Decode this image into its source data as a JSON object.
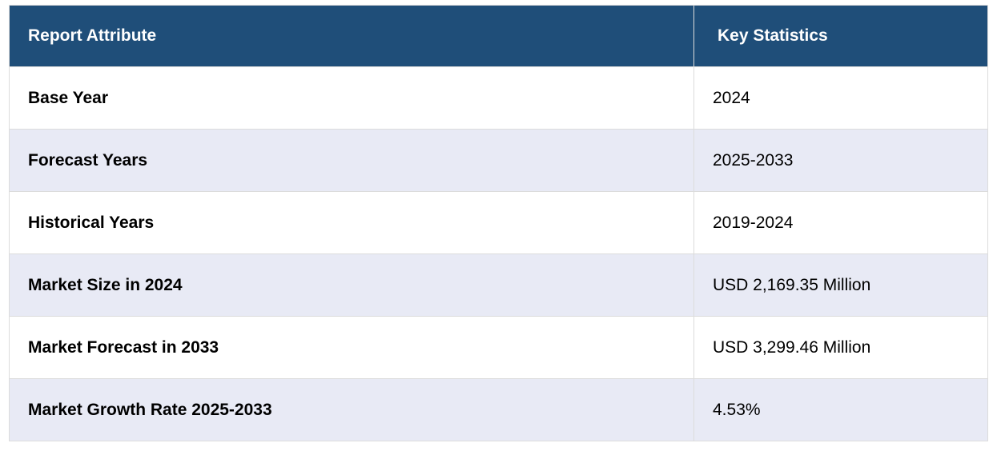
{
  "table": {
    "headers": [
      "Report Attribute",
      "Key Statistics"
    ],
    "rows": [
      {
        "attribute": "Base Year",
        "value": "2024"
      },
      {
        "attribute": "Forecast Years",
        "value": "2025-2033"
      },
      {
        "attribute": "Historical Years",
        "value": "2019-2024"
      },
      {
        "attribute": "Market Size in 2024",
        "value": "USD 2,169.35 Million"
      },
      {
        "attribute": "Market Forecast in 2033",
        "value": "USD 3,299.46 Million"
      },
      {
        "attribute": "Market Growth Rate 2025-2033",
        "value": "4.53%"
      }
    ],
    "colors": {
      "header_bg": "#1f4e79",
      "header_text": "#ffffff",
      "row_alt_bg": "#e8eaf5",
      "row_bg": "#ffffff"
    }
  }
}
